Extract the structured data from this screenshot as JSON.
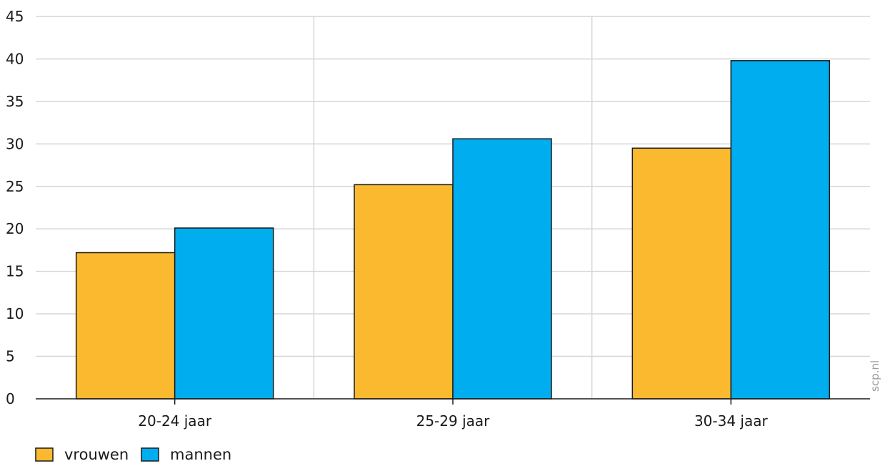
{
  "chart_data": {
    "type": "bar",
    "categories": [
      "20-24 jaar",
      "25-29 jaar",
      "30-34 jaar"
    ],
    "series": [
      {
        "name": "vrouwen",
        "values": [
          17.2,
          25.2,
          29.5
        ],
        "color": "#fbb92f"
      },
      {
        "name": "mannen",
        "values": [
          20.1,
          30.6,
          39.8
        ],
        "color": "#00adef"
      }
    ],
    "ylim": [
      0,
      45
    ],
    "yticks": [
      0,
      5,
      10,
      15,
      20,
      25,
      30,
      35,
      40,
      45
    ],
    "grid": true,
    "legend_position": "bottom-left",
    "title": "",
    "xlabel": "",
    "ylabel": ""
  },
  "watermark": "scp.nl"
}
